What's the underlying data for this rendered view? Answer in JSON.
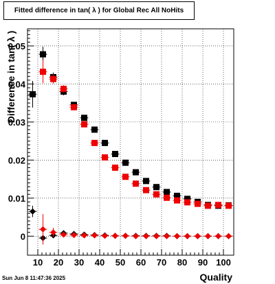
{
  "title": "Fitted difference in tan( λ ) for Global Rec All NoHits",
  "timestamp": "Sun Jun  8 11:47:36 2025",
  "chart_data": {
    "type": "scatter",
    "title": "Fitted difference in tan( λ ) for Global Rec All NoHits",
    "xlabel": "Quality",
    "ylabel": "Difference in tan( λ )",
    "xlim": [
      5,
      105
    ],
    "ylim": [
      -0.005,
      0.0545
    ],
    "grid": true,
    "x_ticks": [
      10,
      20,
      30,
      40,
      50,
      60,
      70,
      80,
      90,
      100
    ],
    "x_tick_labels": [
      "10",
      "20",
      "30",
      "40",
      "50",
      "60",
      "70",
      "80",
      "90",
      "100"
    ],
    "y_ticks": [
      0,
      0.01,
      0.02,
      0.03,
      0.04,
      0.05
    ],
    "y_tick_labels": [
      "0",
      "0.01",
      "0.02",
      "0.03",
      "0.04",
      "0.05"
    ],
    "x": [
      7.5,
      12.5,
      17.5,
      22.5,
      27.5,
      32.5,
      37.5,
      42.5,
      47.5,
      52.5,
      57.5,
      62.5,
      67.5,
      72.5,
      77.5,
      82.5,
      87.5,
      92.5,
      97.5,
      102.5
    ],
    "series": [
      {
        "marker": "square",
        "color": "#000000",
        "values": [
          0.0373,
          0.0478,
          0.0418,
          0.038,
          0.0345,
          0.0311,
          0.028,
          0.0245,
          0.0216,
          0.0193,
          0.0168,
          0.0145,
          0.0129,
          0.0116,
          0.0106,
          0.0098,
          0.009,
          0.0082,
          0.008,
          0.0081
        ],
        "errors": [
          0.0035,
          0.002,
          0.0012,
          0.001,
          0.0008,
          0.0006,
          0.0005,
          0.0004,
          0.0004,
          0.0003,
          0.0003,
          0.0003,
          0.0003,
          0.0003,
          0.0003,
          0.0003,
          0.0003,
          0.0003,
          0.0003,
          0.0003
        ]
      },
      {
        "marker": "square",
        "color": "#ee0000",
        "values": [
          null,
          0.0432,
          0.0413,
          0.0387,
          0.0339,
          0.0294,
          0.0245,
          0.0207,
          0.018,
          0.0156,
          0.0138,
          0.0121,
          0.011,
          0.0101,
          0.0094,
          0.0089,
          0.0085,
          0.008,
          0.0082,
          0.008
        ],
        "errors": [
          null,
          0.003,
          0.0012,
          0.001,
          0.0008,
          0.0006,
          0.0005,
          0.0004,
          0.0004,
          0.0003,
          0.0003,
          0.0003,
          0.0003,
          0.0003,
          0.0003,
          0.0003,
          0.0003,
          0.0003,
          0.0003,
          0.0003
        ]
      },
      {
        "marker": "diamond",
        "color": "#000000",
        "values": [
          0.0065,
          -0.0005,
          0.0002,
          0.0008,
          0.0006,
          0.0004,
          0.0003,
          0.0002,
          0.0001,
          0.0001,
          0.0001,
          0.0001,
          0.0001,
          0.0001,
          0.0,
          0.0,
          0.0,
          0.0,
          0.0,
          0.0
        ],
        "errors": [
          0.0015,
          0.0012,
          0.0006,
          0.0003,
          0.0003,
          0.0002,
          0.0002,
          0.0002,
          0.0001,
          0.0001,
          0.0001,
          0.0001,
          0.0001,
          0.0001,
          0.0001,
          0.0001,
          0.0001,
          0.0001,
          0.0001,
          0.0001
        ]
      },
      {
        "marker": "diamond",
        "color": "#ee0000",
        "values": [
          null,
          0.0018,
          0.001,
          0.0004,
          0.0003,
          0.0002,
          0.0002,
          0.0001,
          0.0001,
          0.0001,
          0.0,
          0.0,
          0.0,
          0.0,
          0.0,
          0.0,
          0.0,
          0.0,
          0.0,
          0.0
        ],
        "errors": [
          null,
          0.004,
          0.0012,
          0.0005,
          0.0003,
          0.0002,
          0.0002,
          0.0001,
          0.0001,
          0.0001,
          0.0001,
          0.0001,
          0.0001,
          0.0001,
          0.0001,
          0.0001,
          0.0001,
          0.0001,
          0.0001,
          0.0001
        ]
      }
    ]
  }
}
